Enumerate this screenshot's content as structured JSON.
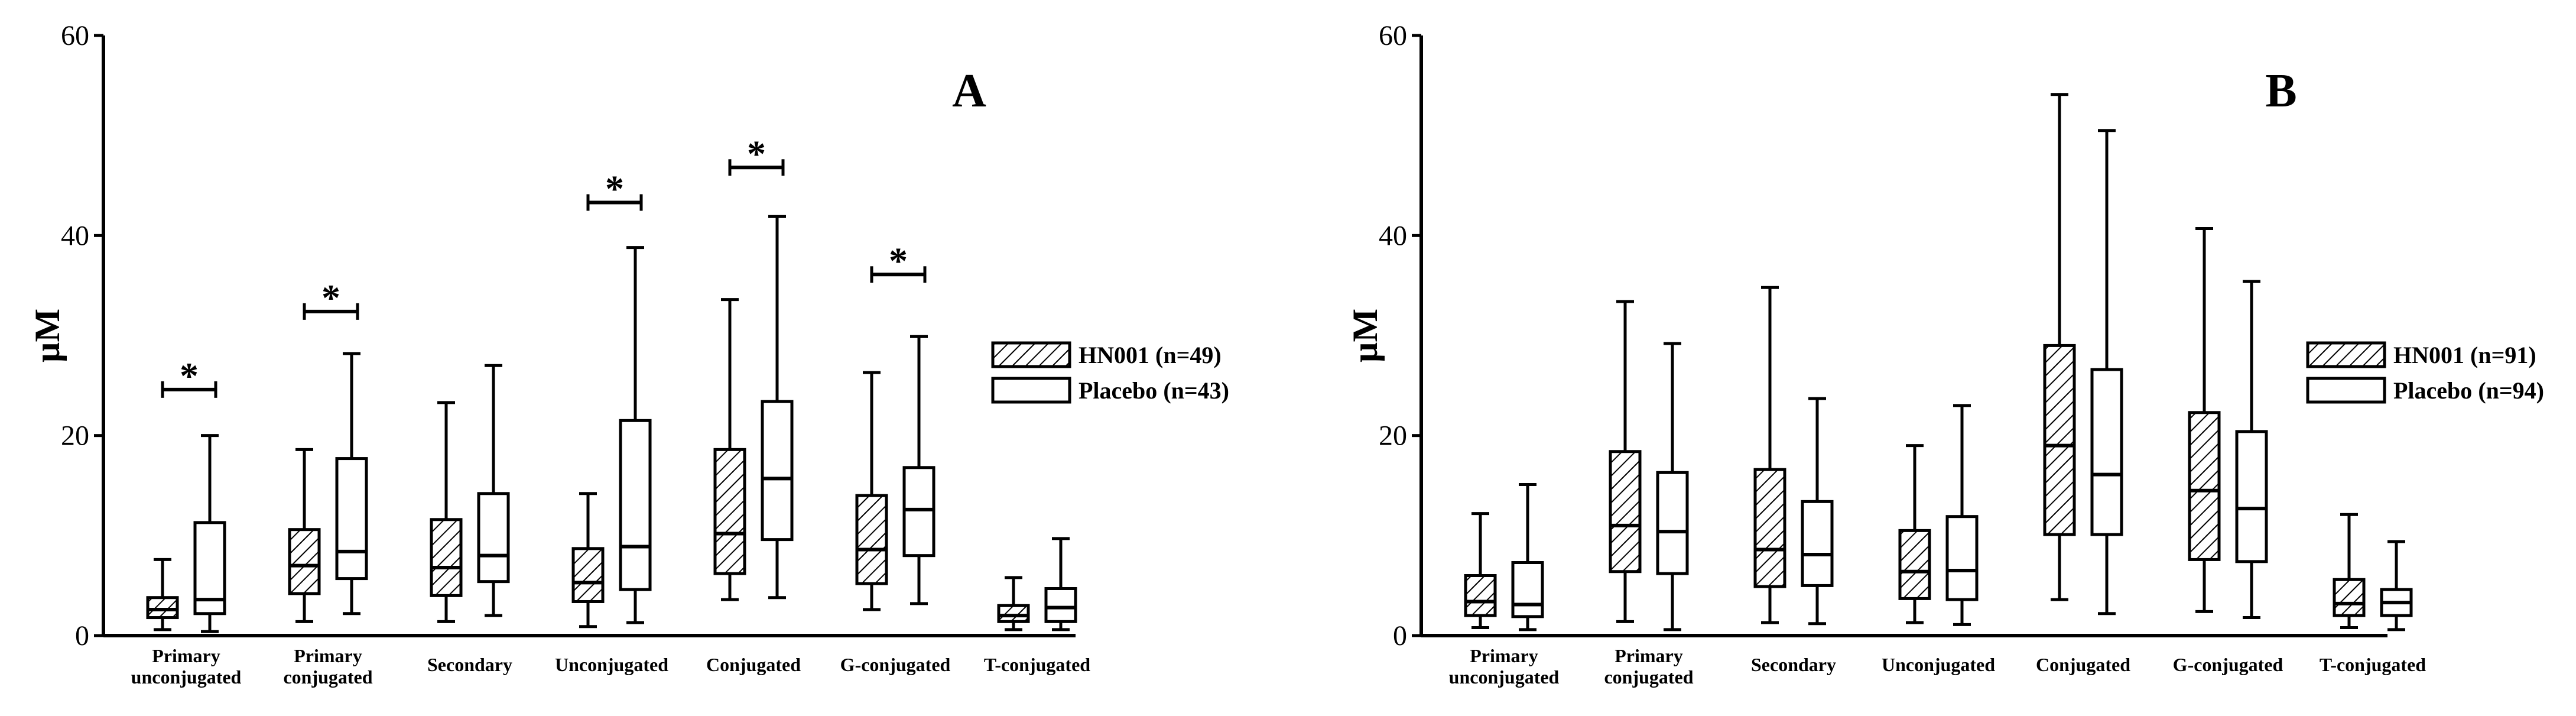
{
  "chart_data": [
    {
      "type": "box",
      "panel_label": "A",
      "ylabel": "µM",
      "ylim": [
        0,
        60
      ],
      "yticks": [
        0,
        20,
        40,
        60
      ],
      "categories": [
        [
          "Primary",
          "unconjugated"
        ],
        [
          "Primary",
          "conjugated"
        ],
        [
          "Secondary"
        ],
        [
          "Unconjugated"
        ],
        [
          "Conjugated"
        ],
        [
          "G-conjugated"
        ],
        [
          "T-conjugated"
        ]
      ],
      "legend": [
        {
          "name": "HN001",
          "n": "(n=49)",
          "pattern": "hatched"
        },
        {
          "name": "Placebo",
          "n": "(n=43)",
          "pattern": "open"
        }
      ],
      "series": [
        {
          "name": "HN001",
          "pattern": "hatched",
          "boxes": [
            {
              "min": 0.6,
              "q1": 1.8,
              "median": 2.6,
              "q3": 3.8,
              "max": 7.6
            },
            {
              "min": 1.4,
              "q1": 4.2,
              "median": 7.0,
              "q3": 10.6,
              "max": 18.6
            },
            {
              "min": 1.4,
              "q1": 4.0,
              "median": 6.8,
              "q3": 11.6,
              "max": 23.3
            },
            {
              "min": 0.9,
              "q1": 3.4,
              "median": 5.3,
              "q3": 8.7,
              "max": 14.2
            },
            {
              "min": 3.6,
              "q1": 6.2,
              "median": 10.2,
              "q3": 18.6,
              "max": 33.6
            },
            {
              "min": 2.6,
              "q1": 5.2,
              "median": 8.6,
              "q3": 14.0,
              "max": 26.3
            },
            {
              "min": 0.6,
              "q1": 1.4,
              "median": 2.0,
              "q3": 3.0,
              "max": 5.8
            }
          ]
        },
        {
          "name": "Placebo",
          "pattern": "open",
          "boxes": [
            {
              "min": 0.4,
              "q1": 2.2,
              "median": 3.6,
              "q3": 11.3,
              "max": 20.0
            },
            {
              "min": 2.2,
              "q1": 5.7,
              "median": 8.4,
              "q3": 17.7,
              "max": 28.2
            },
            {
              "min": 2.0,
              "q1": 5.4,
              "median": 8.0,
              "q3": 14.2,
              "max": 27.0
            },
            {
              "min": 1.3,
              "q1": 4.6,
              "median": 8.9,
              "q3": 21.5,
              "max": 38.8
            },
            {
              "min": 3.8,
              "q1": 9.6,
              "median": 15.7,
              "q3": 23.4,
              "max": 41.9
            },
            {
              "min": 3.2,
              "q1": 8.0,
              "median": 12.6,
              "q3": 16.8,
              "max": 29.9
            },
            {
              "min": 0.6,
              "q1": 1.4,
              "median": 2.8,
              "q3": 4.7,
              "max": 9.7
            }
          ]
        }
      ],
      "significance": [
        {
          "category": 0,
          "marker": "*",
          "y": 24.6
        },
        {
          "category": 1,
          "marker": "*",
          "y": 32.4
        },
        {
          "category": 3,
          "marker": "*",
          "y": 43.3
        },
        {
          "category": 4,
          "marker": "*",
          "y": 46.8
        },
        {
          "category": 5,
          "marker": "*",
          "y": 36.1
        }
      ]
    },
    {
      "type": "box",
      "panel_label": "B",
      "ylabel": "µM",
      "ylim": [
        0,
        60
      ],
      "yticks": [
        0,
        20,
        40,
        60
      ],
      "categories": [
        [
          "Primary",
          "unconjugated"
        ],
        [
          "Primary",
          "conjugated"
        ],
        [
          "Secondary"
        ],
        [
          "Unconjugated"
        ],
        [
          "Conjugated"
        ],
        [
          "G-conjugated"
        ],
        [
          "T-conjugated"
        ]
      ],
      "legend": [
        {
          "name": "HN001",
          "n": "(n=91)",
          "pattern": "hatched"
        },
        {
          "name": "Placebo",
          "n": "(n=94)",
          "pattern": "open"
        }
      ],
      "series": [
        {
          "name": "HN001",
          "pattern": "hatched",
          "boxes": [
            {
              "min": 0.8,
              "q1": 2.0,
              "median": 3.4,
              "q3": 6.0,
              "max": 12.2
            },
            {
              "min": 1.4,
              "q1": 6.4,
              "median": 11.0,
              "q3": 18.4,
              "max": 33.4
            },
            {
              "min": 1.3,
              "q1": 4.9,
              "median": 8.6,
              "q3": 16.6,
              "max": 34.8
            },
            {
              "min": 1.3,
              "q1": 3.7,
              "median": 6.4,
              "q3": 10.5,
              "max": 19.0
            },
            {
              "min": 3.6,
              "q1": 10.1,
              "median": 19.0,
              "q3": 29.0,
              "max": 54.1
            },
            {
              "min": 2.4,
              "q1": 7.6,
              "median": 14.5,
              "q3": 22.3,
              "max": 40.7
            },
            {
              "min": 0.8,
              "q1": 2.0,
              "median": 3.2,
              "q3": 5.6,
              "max": 12.1
            }
          ]
        },
        {
          "name": "Placebo",
          "pattern": "open",
          "boxes": [
            {
              "min": 0.6,
              "q1": 1.9,
              "median": 3.1,
              "q3": 7.3,
              "max": 15.1
            },
            {
              "min": 0.6,
              "q1": 6.2,
              "median": 10.4,
              "q3": 16.3,
              "max": 29.2
            },
            {
              "min": 1.2,
              "q1": 5.0,
              "median": 8.1,
              "q3": 13.4,
              "max": 23.7
            },
            {
              "min": 1.1,
              "q1": 3.6,
              "median": 6.5,
              "q3": 11.9,
              "max": 23.0
            },
            {
              "min": 2.2,
              "q1": 10.1,
              "median": 16.1,
              "q3": 26.6,
              "max": 50.5
            },
            {
              "min": 1.8,
              "q1": 7.4,
              "median": 12.7,
              "q3": 20.4,
              "max": 35.4
            },
            {
              "min": 0.6,
              "q1": 2.0,
              "median": 3.3,
              "q3": 4.6,
              "max": 9.4
            }
          ]
        }
      ],
      "significance": []
    }
  ]
}
